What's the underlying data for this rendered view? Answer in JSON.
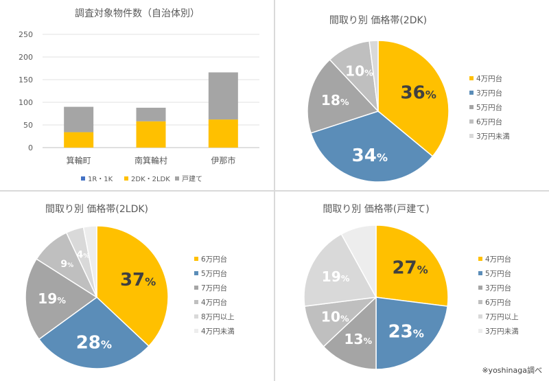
{
  "colors": {
    "blue": "#4472c4",
    "steel": "#5b8db8",
    "orange": "#ffc000",
    "gray": "#a5a5a5",
    "lightgray": "#bfbfbf",
    "verylight": "#d9d9d9",
    "lightest": "#ededed"
  },
  "credit": "※yoshinaga調べ",
  "chart_data": [
    {
      "type": "bar",
      "title": "調査対象物件数（自治体別）",
      "stacked": true,
      "categories": [
        "箕輪町",
        "南箕輪村",
        "伊那市"
      ],
      "series": [
        {
          "name": "1R・1K",
          "color": "#4472c4",
          "values": [
            0,
            0,
            0
          ]
        },
        {
          "name": "2DK・2LDK",
          "color": "#ffc000",
          "values": [
            34,
            58,
            62
          ]
        },
        {
          "name": "戸建て",
          "color": "#a5a5a5",
          "values": [
            56,
            30,
            104
          ]
        }
      ],
      "ylim": [
        0,
        250
      ],
      "yticks": [
        "250",
        "200",
        "150",
        "100",
        "50",
        "0"
      ],
      "grid": true,
      "legend": "bottom"
    },
    {
      "type": "pie",
      "title": "間取り別 価格帯(2DK)",
      "labels": [
        "4万円台",
        "3万円台",
        "5万円台",
        "6万円台",
        "3万円未満"
      ],
      "values": [
        36,
        34,
        18,
        10,
        2
      ],
      "data_labels": [
        "36%",
        "34%",
        "18%",
        "10%",
        ""
      ],
      "colors": [
        "#ffc000",
        "#5b8db8",
        "#a5a5a5",
        "#bfbfbf",
        "#d9d9d9"
      ],
      "legend": "right"
    },
    {
      "type": "pie",
      "title": "間取り別 価格帯(2LDK)",
      "labels": [
        "6万円台",
        "5万円台",
        "7万円台",
        "4万円台",
        "8万円以上",
        "4万円未満"
      ],
      "values": [
        37,
        28,
        19,
        9,
        4,
        3
      ],
      "data_labels": [
        "37%",
        "28%",
        "19%",
        "9%",
        "4%",
        ""
      ],
      "colors": [
        "#ffc000",
        "#5b8db8",
        "#a5a5a5",
        "#bfbfbf",
        "#d9d9d9",
        "#ededed"
      ],
      "legend": "right"
    },
    {
      "type": "pie",
      "title": "間取り別 価格帯(戸建て)",
      "labels": [
        "4万円台",
        "5万円台",
        "3万円台",
        "6万円台",
        "7万円以上",
        "3万円未満"
      ],
      "values": [
        27,
        23,
        13,
        10,
        19,
        8
      ],
      "data_labels": [
        "27%",
        "23%",
        "13%",
        "10%",
        "19%",
        ""
      ],
      "colors": [
        "#ffc000",
        "#5b8db8",
        "#a5a5a5",
        "#bfbfbf",
        "#d9d9d9",
        "#ededed"
      ],
      "legend": "right"
    }
  ]
}
